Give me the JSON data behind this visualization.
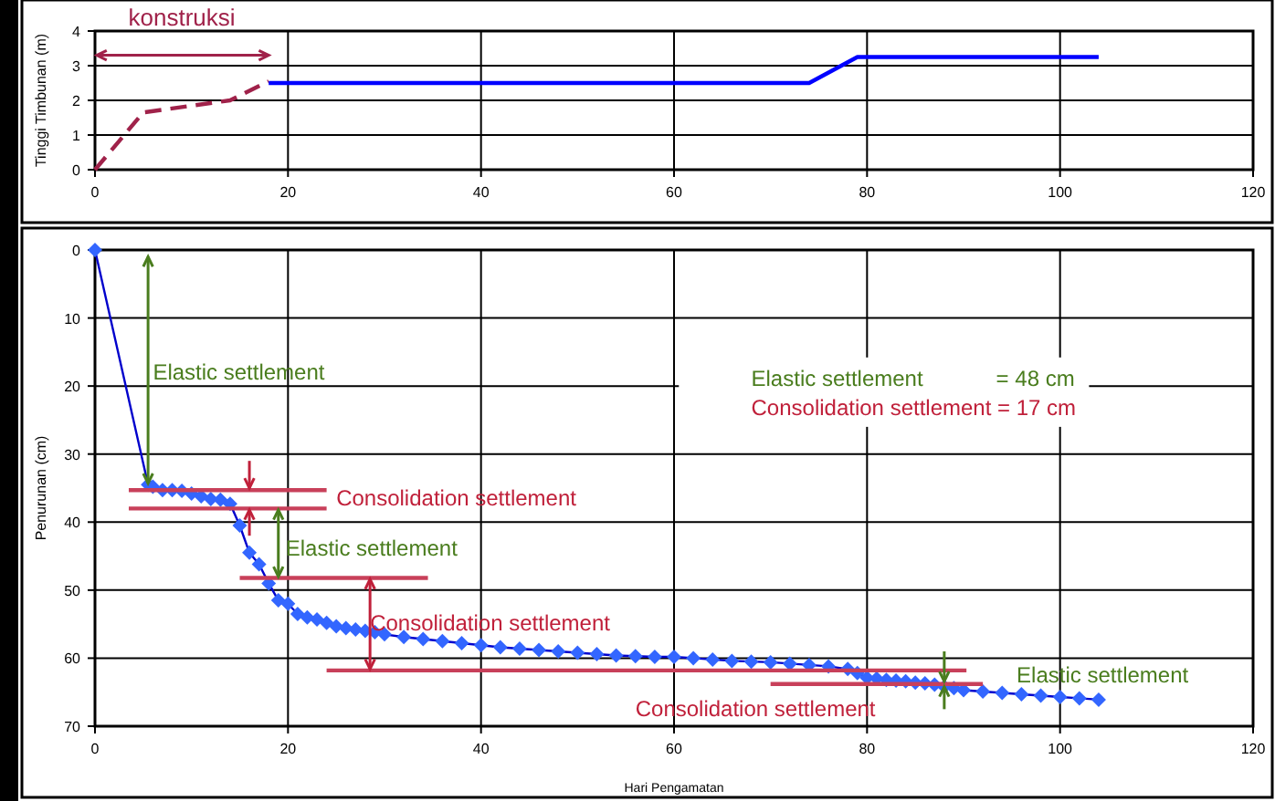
{
  "chart_data": [
    {
      "type": "line",
      "ylabel": "Tinggi Timbunan (m)",
      "xlim": [
        0,
        120
      ],
      "xticks": [
        0,
        20,
        40,
        60,
        80,
        100,
        120
      ],
      "ylim": [
        0,
        4
      ],
      "yticks": [
        0,
        1,
        2,
        3,
        4
      ],
      "grid": true,
      "marker": "none",
      "series": [
        {
          "color": "#a0224a",
          "line_style": "dashed",
          "x": [
            0,
            5,
            14,
            18
          ],
          "values": [
            0,
            1.65,
            2.0,
            2.55
          ]
        },
        {
          "color": "#0000ff",
          "line_style": "solid",
          "x": [
            18,
            74,
            79,
            104
          ],
          "values": [
            2.5,
            2.5,
            3.25,
            3.25
          ]
        }
      ],
      "annotations": [
        "konstruksi"
      ]
    },
    {
      "type": "line",
      "xlabel": "Hari Pengamatan",
      "ylabel": "Penurunan (cm)",
      "xlim": [
        0,
        120
      ],
      "xticks": [
        0,
        20,
        40,
        60,
        80,
        100,
        120
      ],
      "ylim": [
        70,
        0
      ],
      "yticks": [
        0,
        10,
        20,
        30,
        40,
        50,
        60,
        70
      ],
      "grid": true,
      "series": [
        {
          "color": "#3366ff",
          "marker": "diamond",
          "x": [
            0,
            5.5,
            6,
            7,
            8,
            9,
            10,
            11,
            12,
            13,
            14,
            15,
            16,
            17,
            18,
            19,
            20,
            21,
            22,
            23,
            24,
            25,
            26,
            27,
            28,
            29,
            30,
            32,
            34,
            36,
            38,
            40,
            42,
            44,
            46,
            48,
            50,
            52,
            54,
            56,
            58,
            60,
            62,
            64,
            66,
            68,
            70,
            72,
            74,
            76,
            78,
            79,
            80,
            81,
            82,
            83,
            84,
            85,
            86,
            87,
            88,
            89,
            90,
            92,
            94,
            96,
            98,
            100,
            102,
            104
          ],
          "values": [
            0,
            34.5,
            34.8,
            35.3,
            35.3,
            35.4,
            35.8,
            36.2,
            36.6,
            36.7,
            37.3,
            40.5,
            44.5,
            46.2,
            49,
            51.5,
            52,
            53.5,
            54,
            54.3,
            54.8,
            55.3,
            55.6,
            55.8,
            56,
            56.2,
            56.5,
            56.9,
            57.2,
            57.5,
            57.8,
            58.1,
            58.4,
            58.6,
            58.8,
            59,
            59.2,
            59.4,
            59.6,
            59.7,
            59.8,
            59.8,
            60,
            60.2,
            60.4,
            60.5,
            60.6,
            60.8,
            61,
            61.2,
            61.6,
            62.2,
            62.9,
            63.0,
            63.2,
            63.3,
            63.4,
            63.6,
            63.7,
            63.9,
            64.2,
            64.4,
            64.7,
            64.9,
            65.1,
            65.3,
            65.5,
            65.7,
            65.9,
            66.1
          ]
        },
        {
          "color": "#c8405a",
          "marker": "none",
          "x": [
            3.5,
            24
          ],
          "values": [
            35.3,
            35.3
          ]
        },
        {
          "color": "#c8405a",
          "marker": "none",
          "x": [
            3.5,
            24
          ],
          "values": [
            38,
            38
          ]
        },
        {
          "color": "#c8405a",
          "marker": "none",
          "x": [
            15,
            34.5
          ],
          "values": [
            48.2,
            48.2
          ]
        },
        {
          "color": "#c8405a",
          "marker": "none",
          "x": [
            24,
            90.3
          ],
          "values": [
            61.8,
            61.8
          ]
        },
        {
          "color": "#c8405a",
          "marker": "none",
          "x": [
            70,
            92
          ],
          "values": [
            63.8,
            63.8
          ]
        }
      ],
      "annotations": [
        "Elastic settlement",
        "Consolidation settlement",
        {
          "text": "Elastic settlement",
          "x": 19,
          "y": 48.2
        },
        {
          "text": "Consolidation settlement",
          "x": 28.5,
          "y": 48.2
        },
        "Elastic settlement",
        "Consolidation settlement",
        "Elastic settlement            = 48 cm",
        "Consolidation settlement = 17 cm"
      ]
    }
  ]
}
